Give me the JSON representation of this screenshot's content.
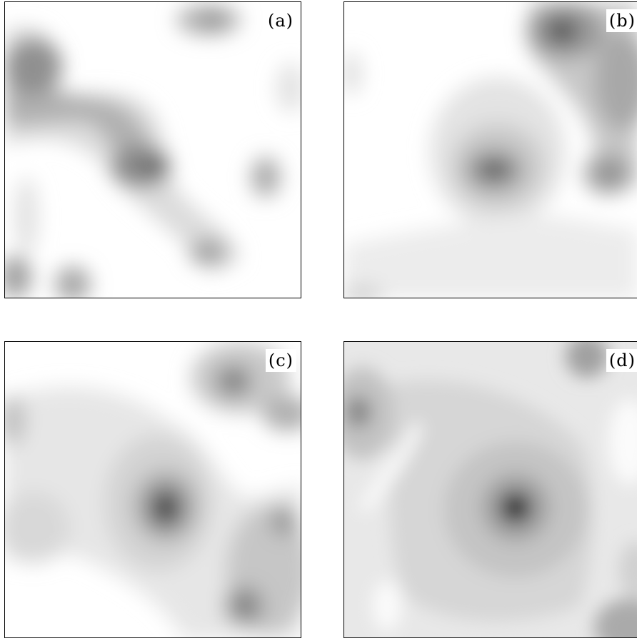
{
  "panels": [
    {
      "id": "a",
      "label": "(a)"
    },
    {
      "id": "b",
      "label": "(b)"
    },
    {
      "id": "c",
      "label": "(c)"
    },
    {
      "id": "d",
      "label": "(d)"
    }
  ],
  "colors": {
    "background": "#ffffff",
    "frame": "#000000",
    "levels": [
      "#ebebeb",
      "#d6d6d6",
      "#bdbdbd",
      "#a3a3a3",
      "#888888",
      "#666666",
      "#333333"
    ]
  }
}
